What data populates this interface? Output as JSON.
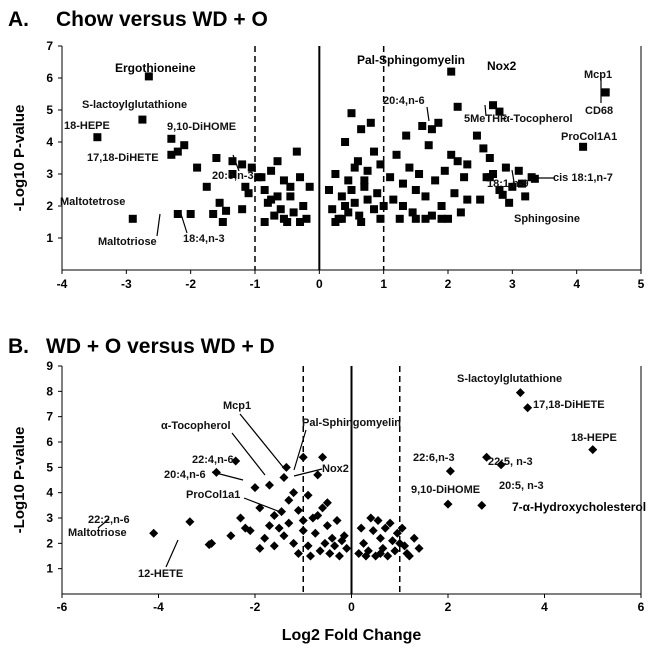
{
  "chart_data": [
    {
      "type": "scatter",
      "panel_label": "A.",
      "title": "Chow versus WD + O",
      "xlabel": "",
      "ylabel": "-Log10 P-value",
      "xlim": [
        -4,
        5
      ],
      "ylim": [
        0,
        7
      ],
      "xticks": [
        "-4",
        "-3",
        "-2",
        "-1",
        "0",
        "1",
        "2",
        "3",
        "4",
        "5"
      ],
      "yticks": [
        "1",
        "2",
        "3",
        "4",
        "5",
        "6",
        "7"
      ],
      "thresholds": [
        -1,
        1
      ],
      "marker": "square",
      "labeled_points": [
        {
          "label": "Ergothioneine",
          "x": -2.65,
          "y": 6.05
        },
        {
          "label": "S-lactoylglutathione",
          "x": -2.75,
          "y": 4.7
        },
        {
          "label": "18-HEPE",
          "x": -3.45,
          "y": 4.15
        },
        {
          "label": "9,10-DiHOME",
          "x": -2.3,
          "y": 4.1
        },
        {
          "label": "17,18-DiHETE",
          "x": -2.3,
          "y": 3.6
        },
        {
          "label": "20:5,n-3",
          "x": -1.35,
          "y": 3.0
        },
        {
          "label": "Maltotetrose",
          "x": -2.9,
          "y": 1.6
        },
        {
          "label": "Maltotriose",
          "x": -2.2,
          "y": 1.75
        },
        {
          "label": "18:4,n-3",
          "x": -2.0,
          "y": 1.75
        },
        {
          "label": "Pal-Sphingomyelin",
          "x": 2.05,
          "y": 6.2
        },
        {
          "label": "Nox2",
          "x": 2.7,
          "y": 5.15
        },
        {
          "label": "5MeTHF",
          "x": 2.15,
          "y": 5.1
        },
        {
          "label": "α-Tocopherol",
          "x": 2.8,
          "y": 4.95
        },
        {
          "label": "20:4,n-6",
          "x": 1.75,
          "y": 4.4
        },
        {
          "label": "Mcp1",
          "x": 4.45,
          "y": 5.55
        },
        {
          "label": "CD68",
          "x": 4.45,
          "y": 5.55
        },
        {
          "label": "ProCol1A1",
          "x": 4.1,
          "y": 3.85
        },
        {
          "label": "18:1,n-9",
          "x": 2.65,
          "y": 2.9
        },
        {
          "label": "cis 18:1,n-7",
          "x": 3.35,
          "y": 2.85
        },
        {
          "label": "Sphingosine",
          "x": 2.85,
          "y": 2.35
        }
      ],
      "other_points": [
        [
          -2.2,
          3.7
        ],
        [
          -1.6,
          3.5
        ],
        [
          -1.35,
          3.4
        ],
        [
          -1.2,
          3.3
        ],
        [
          -2.1,
          3.9
        ],
        [
          -1.9,
          3.2
        ],
        [
          -1.75,
          2.6
        ],
        [
          -1.55,
          2.1
        ],
        [
          -1.45,
          1.85
        ],
        [
          -1.65,
          1.75
        ],
        [
          -1.5,
          1.5
        ],
        [
          -1.05,
          3.2
        ],
        [
          -0.95,
          2.9
        ],
        [
          -0.85,
          2.5
        ],
        [
          -0.75,
          2.2
        ],
        [
          -0.65,
          3.4
        ],
        [
          -0.55,
          2.8
        ],
        [
          -0.45,
          2.3
        ],
        [
          -0.35,
          3.7
        ],
        [
          -0.3,
          2.9
        ],
        [
          -0.25,
          2.0
        ],
        [
          -0.2,
          1.6
        ],
        [
          -0.15,
          2.6
        ],
        [
          -0.5,
          1.5
        ],
        [
          -0.6,
          1.9
        ],
        [
          -0.7,
          1.7
        ],
        [
          -0.8,
          2.1
        ],
        [
          -0.9,
          2.9
        ],
        [
          -1.1,
          2.4
        ],
        [
          -1.2,
          1.9
        ],
        [
          -1.15,
          2.6
        ],
        [
          -0.85,
          1.5
        ],
        [
          -0.4,
          1.8
        ],
        [
          -0.3,
          1.5
        ],
        [
          -0.55,
          1.6
        ],
        [
          -0.75,
          3.1
        ],
        [
          -0.45,
          2.6
        ],
        [
          -0.65,
          2.3
        ],
        [
          0.15,
          2.5
        ],
        [
          0.2,
          1.9
        ],
        [
          0.25,
          3.0
        ],
        [
          0.3,
          1.6
        ],
        [
          0.35,
          2.3
        ],
        [
          0.4,
          4.0
        ],
        [
          0.45,
          2.8
        ],
        [
          0.5,
          4.9
        ],
        [
          0.55,
          2.1
        ],
        [
          0.6,
          3.4
        ],
        [
          0.62,
          1.7
        ],
        [
          0.65,
          4.4
        ],
        [
          0.7,
          2.6
        ],
        [
          0.75,
          3.1
        ],
        [
          0.8,
          4.6
        ],
        [
          0.85,
          3.7
        ],
        [
          0.9,
          2.4
        ],
        [
          0.95,
          3.3
        ],
        [
          1.0,
          2.0
        ],
        [
          0.45,
          1.8
        ],
        [
          0.35,
          1.6
        ],
        [
          0.55,
          3.2
        ],
        [
          0.75,
          2.2
        ],
        [
          0.85,
          1.9
        ],
        [
          0.95,
          1.6
        ],
        [
          0.25,
          1.5
        ],
        [
          0.65,
          1.5
        ],
        [
          0.5,
          2.5
        ],
        [
          0.7,
          2.8
        ],
        [
          0.4,
          2.0
        ],
        [
          1.1,
          2.9
        ],
        [
          1.15,
          2.2
        ],
        [
          1.2,
          3.6
        ],
        [
          1.25,
          1.6
        ],
        [
          1.3,
          2.7
        ],
        [
          1.35,
          4.2
        ],
        [
          1.4,
          3.2
        ],
        [
          1.45,
          1.8
        ],
        [
          1.5,
          2.5
        ],
        [
          1.55,
          3.0
        ],
        [
          1.6,
          4.5
        ],
        [
          1.65,
          2.3
        ],
        [
          1.7,
          3.9
        ],
        [
          1.75,
          1.7
        ],
        [
          1.8,
          2.8
        ],
        [
          1.85,
          4.6
        ],
        [
          1.9,
          2.0
        ],
        [
          1.95,
          3.1
        ],
        [
          2.0,
          1.6
        ],
        [
          2.05,
          3.6
        ],
        [
          2.1,
          2.4
        ],
        [
          2.15,
          3.4
        ],
        [
          2.2,
          1.8
        ],
        [
          2.25,
          2.9
        ],
        [
          2.3,
          2.2
        ],
        [
          1.5,
          1.6
        ],
        [
          1.3,
          2.0
        ],
        [
          1.65,
          1.6
        ],
        [
          1.9,
          1.6
        ],
        [
          2.3,
          3.3
        ],
        [
          2.45,
          4.2
        ],
        [
          2.55,
          3.8
        ],
        [
          2.6,
          2.9
        ],
        [
          2.5,
          2.2
        ],
        [
          2.7,
          3.0
        ],
        [
          2.8,
          2.5
        ],
        [
          2.9,
          3.2
        ],
        [
          3.0,
          2.6
        ],
        [
          3.1,
          3.1
        ],
        [
          3.2,
          2.3
        ],
        [
          3.3,
          2.9
        ],
        [
          2.95,
          2.1
        ],
        [
          3.15,
          2.7
        ],
        [
          2.65,
          3.5
        ]
      ]
    },
    {
      "type": "scatter",
      "panel_label": "B.",
      "title": "WD + O versus WD + D",
      "xlabel": "Log2 Fold Change",
      "ylabel": "-Log10 P-value",
      "xlim": [
        -6,
        6
      ],
      "ylim": [
        0,
        9
      ],
      "xticks": [
        "-6",
        "-4",
        "-2",
        "0",
        "2",
        "4",
        "6"
      ],
      "yticks": [
        "1",
        "2",
        "3",
        "4",
        "5",
        "6",
        "7",
        "8",
        "9"
      ],
      "thresholds": [
        -1,
        1
      ],
      "marker": "diamond",
      "labeled_points": [
        {
          "label": "S-lactoylglutathione",
          "x": 3.5,
          "y": 7.95
        },
        {
          "label": "17,18-DiHETE",
          "x": 3.65,
          "y": 7.35
        },
        {
          "label": "18-HEPE",
          "x": 5.0,
          "y": 5.7
        },
        {
          "label": "22:6,n-3",
          "x": 2.05,
          "y": 4.85
        },
        {
          "label": "22:5, n-3",
          "x": 2.8,
          "y": 5.4
        },
        {
          "label": "20:5, n-3",
          "x": 3.1,
          "y": 5.1
        },
        {
          "label": "9,10-DiHOME",
          "x": 2.0,
          "y": 3.55
        },
        {
          "label": "7-α-Hydroxycholesterol",
          "x": 2.7,
          "y": 3.5
        },
        {
          "label": "α-Tocopherol",
          "x": -1.35,
          "y": 5.0
        },
        {
          "label": "Mcp1",
          "x": -1.0,
          "y": 5.4
        },
        {
          "label": "Pal-Sphingomyelin",
          "x": -0.6,
          "y": 5.4
        },
        {
          "label": "22:4,n-6",
          "x": -2.4,
          "y": 5.25
        },
        {
          "label": "20:4,n-6",
          "x": -2.8,
          "y": 4.8
        },
        {
          "label": "Nox2",
          "x": -0.7,
          "y": 4.7
        },
        {
          "label": "ProCol1a1",
          "x": -1.45,
          "y": 3.25
        },
        {
          "label": "22:2,n-6",
          "x": -3.35,
          "y": 2.85
        },
        {
          "label": "Maltotriose",
          "x": -4.1,
          "y": 2.4
        },
        {
          "label": "12-HETE",
          "x": -2.95,
          "y": 1.95
        }
      ],
      "other_points": [
        [
          -2.0,
          4.2
        ],
        [
          -1.7,
          4.3
        ],
        [
          -1.4,
          4.6
        ],
        [
          -1.2,
          4.0
        ],
        [
          -1.9,
          3.4
        ],
        [
          -1.6,
          3.1
        ],
        [
          -1.3,
          3.7
        ],
        [
          -1.1,
          3.3
        ],
        [
          -0.9,
          3.9
        ],
        [
          -0.8,
          3.0
        ],
        [
          -0.6,
          3.4
        ],
        [
          -0.5,
          2.7
        ],
        [
          -0.4,
          2.2
        ],
        [
          -0.3,
          2.9
        ],
        [
          -0.2,
          2.1
        ],
        [
          -0.1,
          1.8
        ],
        [
          -2.3,
          3.0
        ],
        [
          -2.2,
          2.6
        ],
        [
          -2.5,
          2.3
        ],
        [
          -1.8,
          2.2
        ],
        [
          -1.5,
          2.6
        ],
        [
          -1.4,
          2.3
        ],
        [
          -1.2,
          2.0
        ],
        [
          -1.0,
          2.5
        ],
        [
          -0.9,
          1.9
        ],
        [
          -0.75,
          2.4
        ],
        [
          -0.65,
          1.7
        ],
        [
          -0.55,
          2.0
        ],
        [
          -0.45,
          1.6
        ],
        [
          -0.35,
          1.9
        ],
        [
          -0.25,
          1.5
        ],
        [
          -0.15,
          2.3
        ],
        [
          -1.7,
          2.7
        ],
        [
          -1.3,
          2.8
        ],
        [
          -1.0,
          2.9
        ],
        [
          -0.7,
          3.1
        ],
        [
          -0.5,
          3.6
        ],
        [
          -2.9,
          2.0
        ],
        [
          -1.9,
          1.8
        ],
        [
          -1.6,
          1.9
        ],
        [
          -1.1,
          1.6
        ],
        [
          -0.85,
          1.5
        ],
        [
          -2.1,
          2.5
        ],
        [
          0.15,
          1.6
        ],
        [
          0.25,
          2.0
        ],
        [
          0.35,
          1.7
        ],
        [
          0.45,
          2.5
        ],
        [
          0.55,
          2.9
        ],
        [
          0.6,
          2.2
        ],
        [
          0.65,
          1.8
        ],
        [
          0.7,
          2.6
        ],
        [
          0.75,
          1.5
        ],
        [
          0.85,
          2.1
        ],
        [
          0.9,
          1.7
        ],
        [
          0.95,
          2.4
        ],
        [
          1.1,
          1.9
        ],
        [
          1.15,
          1.6
        ],
        [
          1.3,
          2.2
        ],
        [
          1.4,
          1.8
        ],
        [
          0.2,
          2.6
        ],
        [
          0.4,
          3.0
        ],
        [
          0.5,
          1.5
        ],
        [
          0.8,
          2.8
        ],
        [
          1.0,
          2.0
        ],
        [
          0.3,
          1.5
        ],
        [
          1.05,
          2.6
        ],
        [
          1.2,
          1.5
        ],
        [
          0.6,
          1.6
        ]
      ]
    }
  ]
}
